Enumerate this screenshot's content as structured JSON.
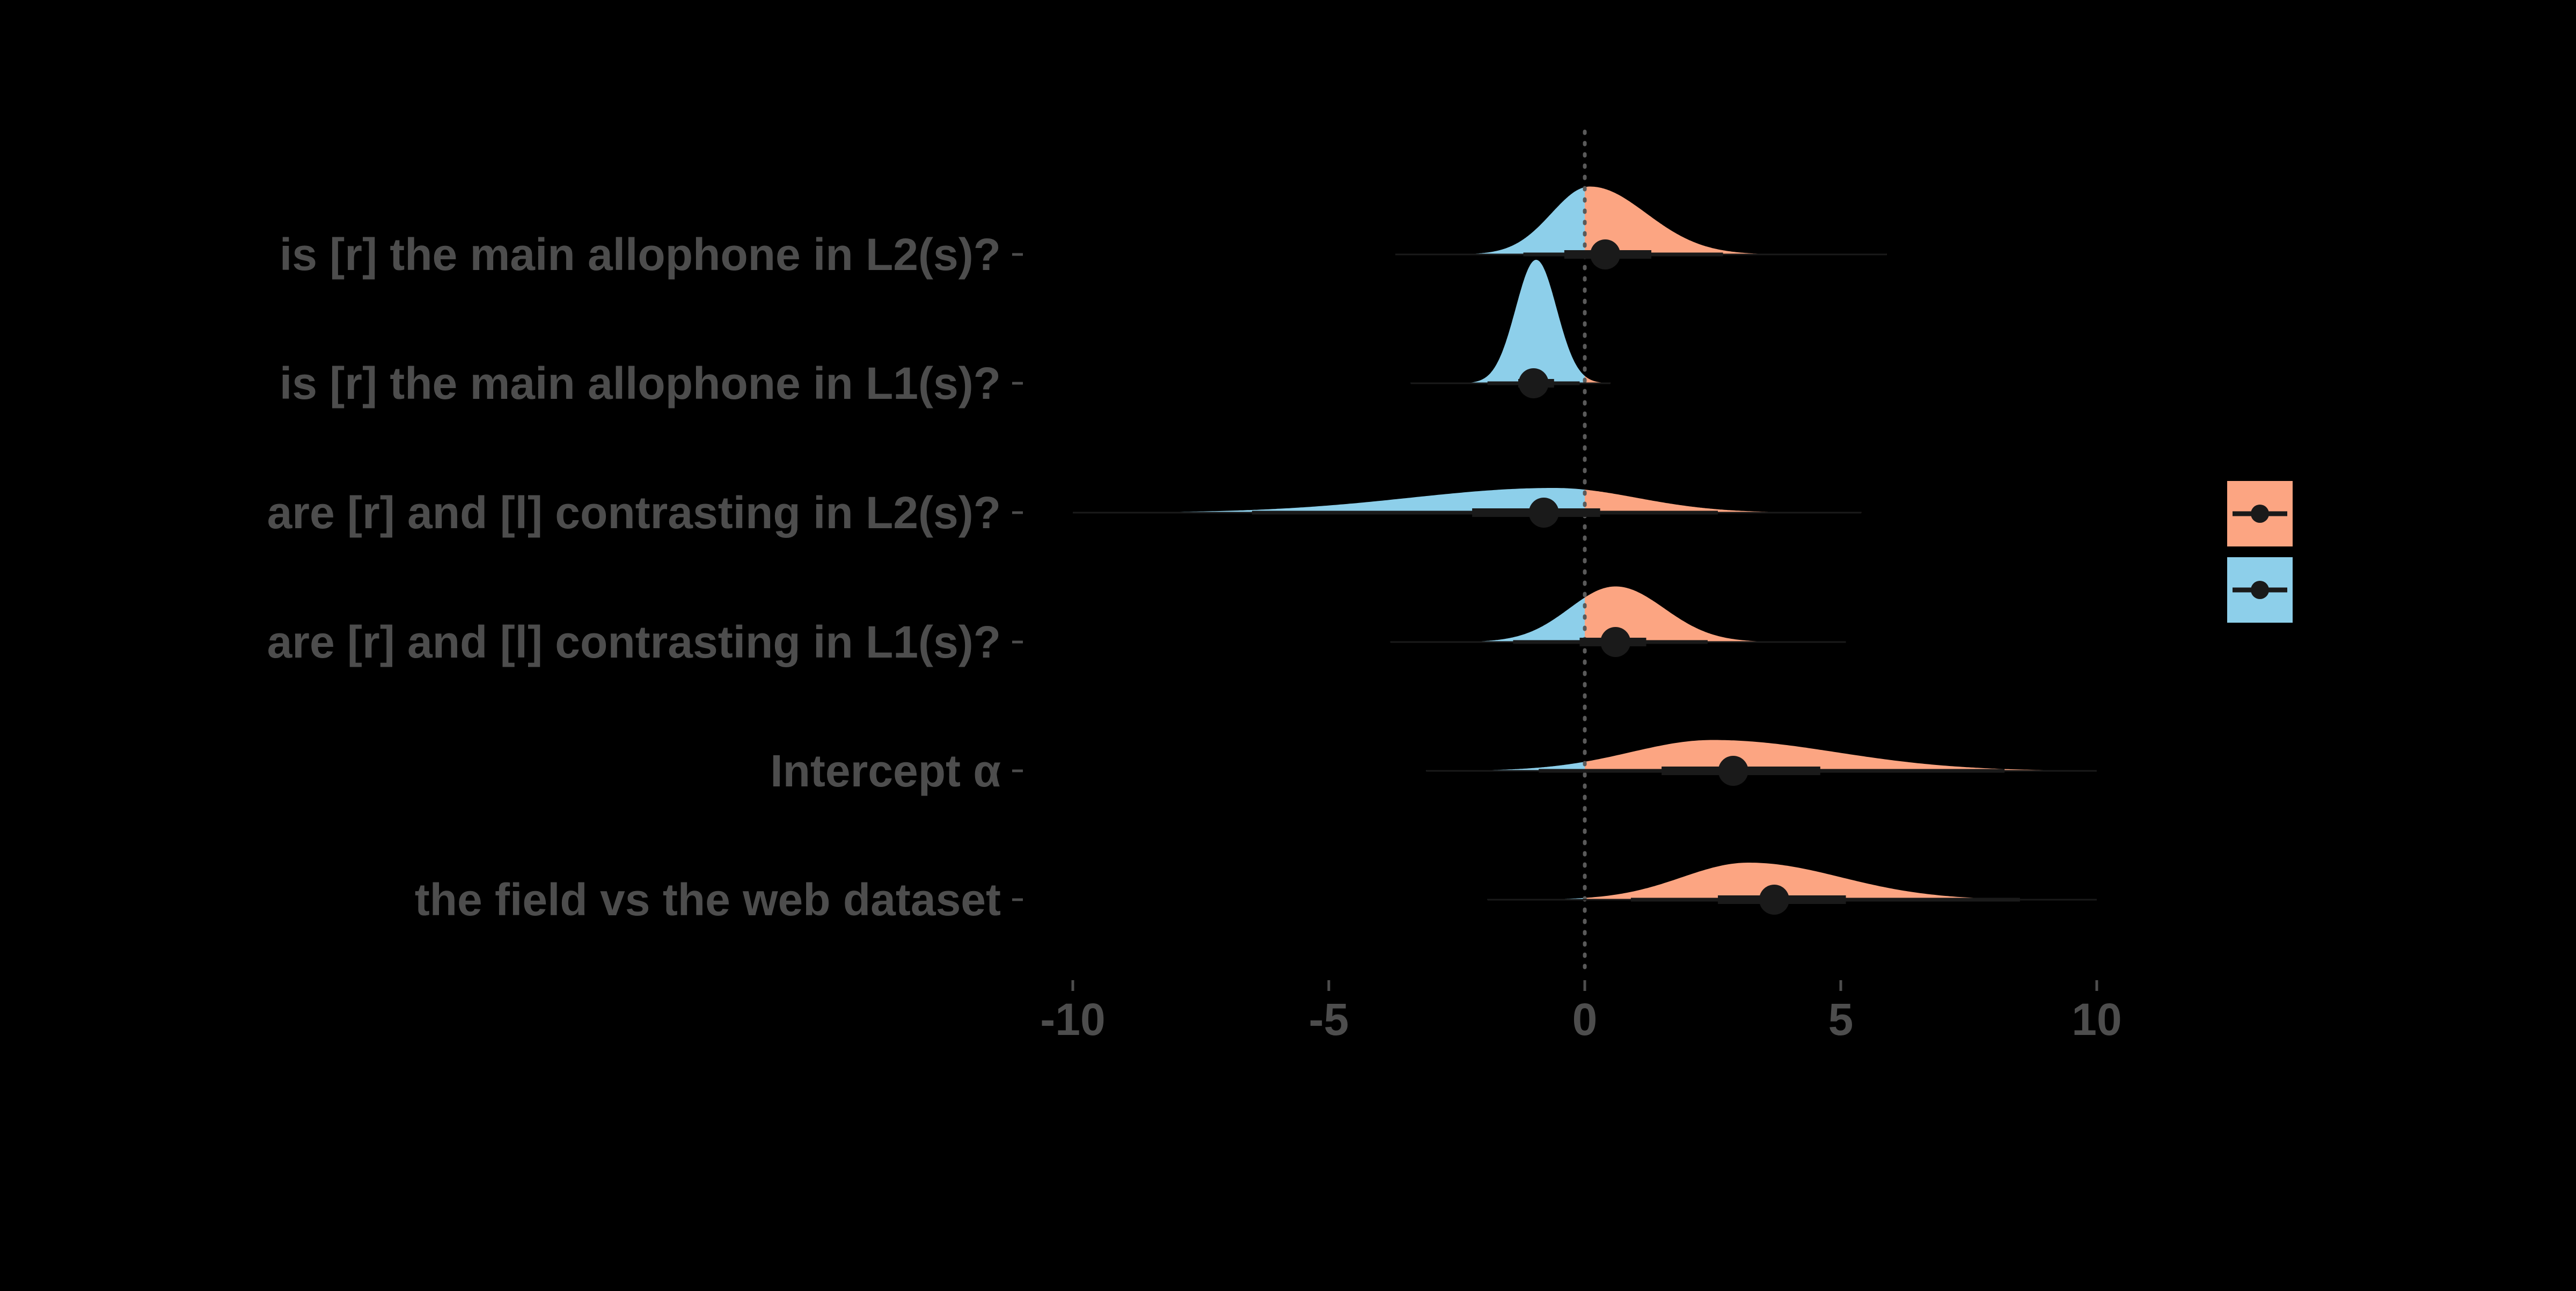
{
  "chart_data": {
    "type": "density",
    "xlim": [
      -10,
      10
    ],
    "x_ticks": [
      -10,
      -5,
      0,
      5,
      10
    ],
    "x_tick_labels": [
      "-10",
      "-5",
      "0",
      "5",
      "10"
    ],
    "reference_line_x": 0,
    "colors": {
      "background": "#000000",
      "positive": "#FCA582",
      "negative": "#8DCFEA",
      "text": "#4D4D4D",
      "ink": "#1A1A1A",
      "ref_line": "#5A5A5A"
    },
    "legend": {
      "placement": "right",
      "keys": [
        {
          "color": "#FCA582",
          "label": ""
        },
        {
          "color": "#8DCFEA",
          "label": ""
        }
      ]
    },
    "rows": [
      {
        "label": "is [r] the main allophone in L2(s)?",
        "median": 0.4,
        "ci66": [
          -0.4,
          1.3
        ],
        "ci95": [
          -1.2,
          2.7
        ],
        "range": [
          -3.7,
          5.9
        ],
        "mode": 0.1,
        "sd_left": 0.75,
        "sd_right": 1.1,
        "height": 0.55
      },
      {
        "label": "is [r] the main allophone in L1(s)?",
        "median": -1.0,
        "ci66": [
          -1.3,
          -0.6
        ],
        "ci95": [
          -1.9,
          -0.1
        ],
        "range": [
          -3.4,
          0.5
        ],
        "mode": -0.95,
        "sd_left": 0.4,
        "sd_right": 0.4,
        "height": 1.0
      },
      {
        "label": "are [r] and [l] contrasting in L2(s)?",
        "median": -0.8,
        "ci66": [
          -2.2,
          0.3
        ],
        "ci95": [
          -6.5,
          2.6
        ],
        "range": [
          -10.0,
          5.4
        ],
        "mode": -0.6,
        "sd_left": 2.8,
        "sd_right": 1.6,
        "height": 0.2
      },
      {
        "label": "are [r] and [l] contrasting in L1(s)?",
        "median": 0.6,
        "ci66": [
          -0.1,
          1.2
        ],
        "ci95": [
          -1.4,
          2.4
        ],
        "range": [
          -3.8,
          5.1
        ],
        "mode": 0.6,
        "sd_left": 0.9,
        "sd_right": 0.95,
        "height": 0.45
      },
      {
        "label": "Intercept α",
        "median": 2.9,
        "ci66": [
          1.5,
          4.6
        ],
        "ci95": [
          -0.9,
          8.2
        ],
        "range": [
          -3.1,
          10.0
        ],
        "mode": 2.5,
        "sd_left": 1.6,
        "sd_right": 2.4,
        "height": 0.25
      },
      {
        "label": "the field vs the web dataset",
        "median": 3.7,
        "ci66": [
          2.6,
          5.1
        ],
        "ci95": [
          0.9,
          8.5
        ],
        "range": [
          -1.9,
          10.0
        ],
        "mode": 3.2,
        "sd_left": 1.3,
        "sd_right": 1.8,
        "height": 0.3
      }
    ]
  }
}
